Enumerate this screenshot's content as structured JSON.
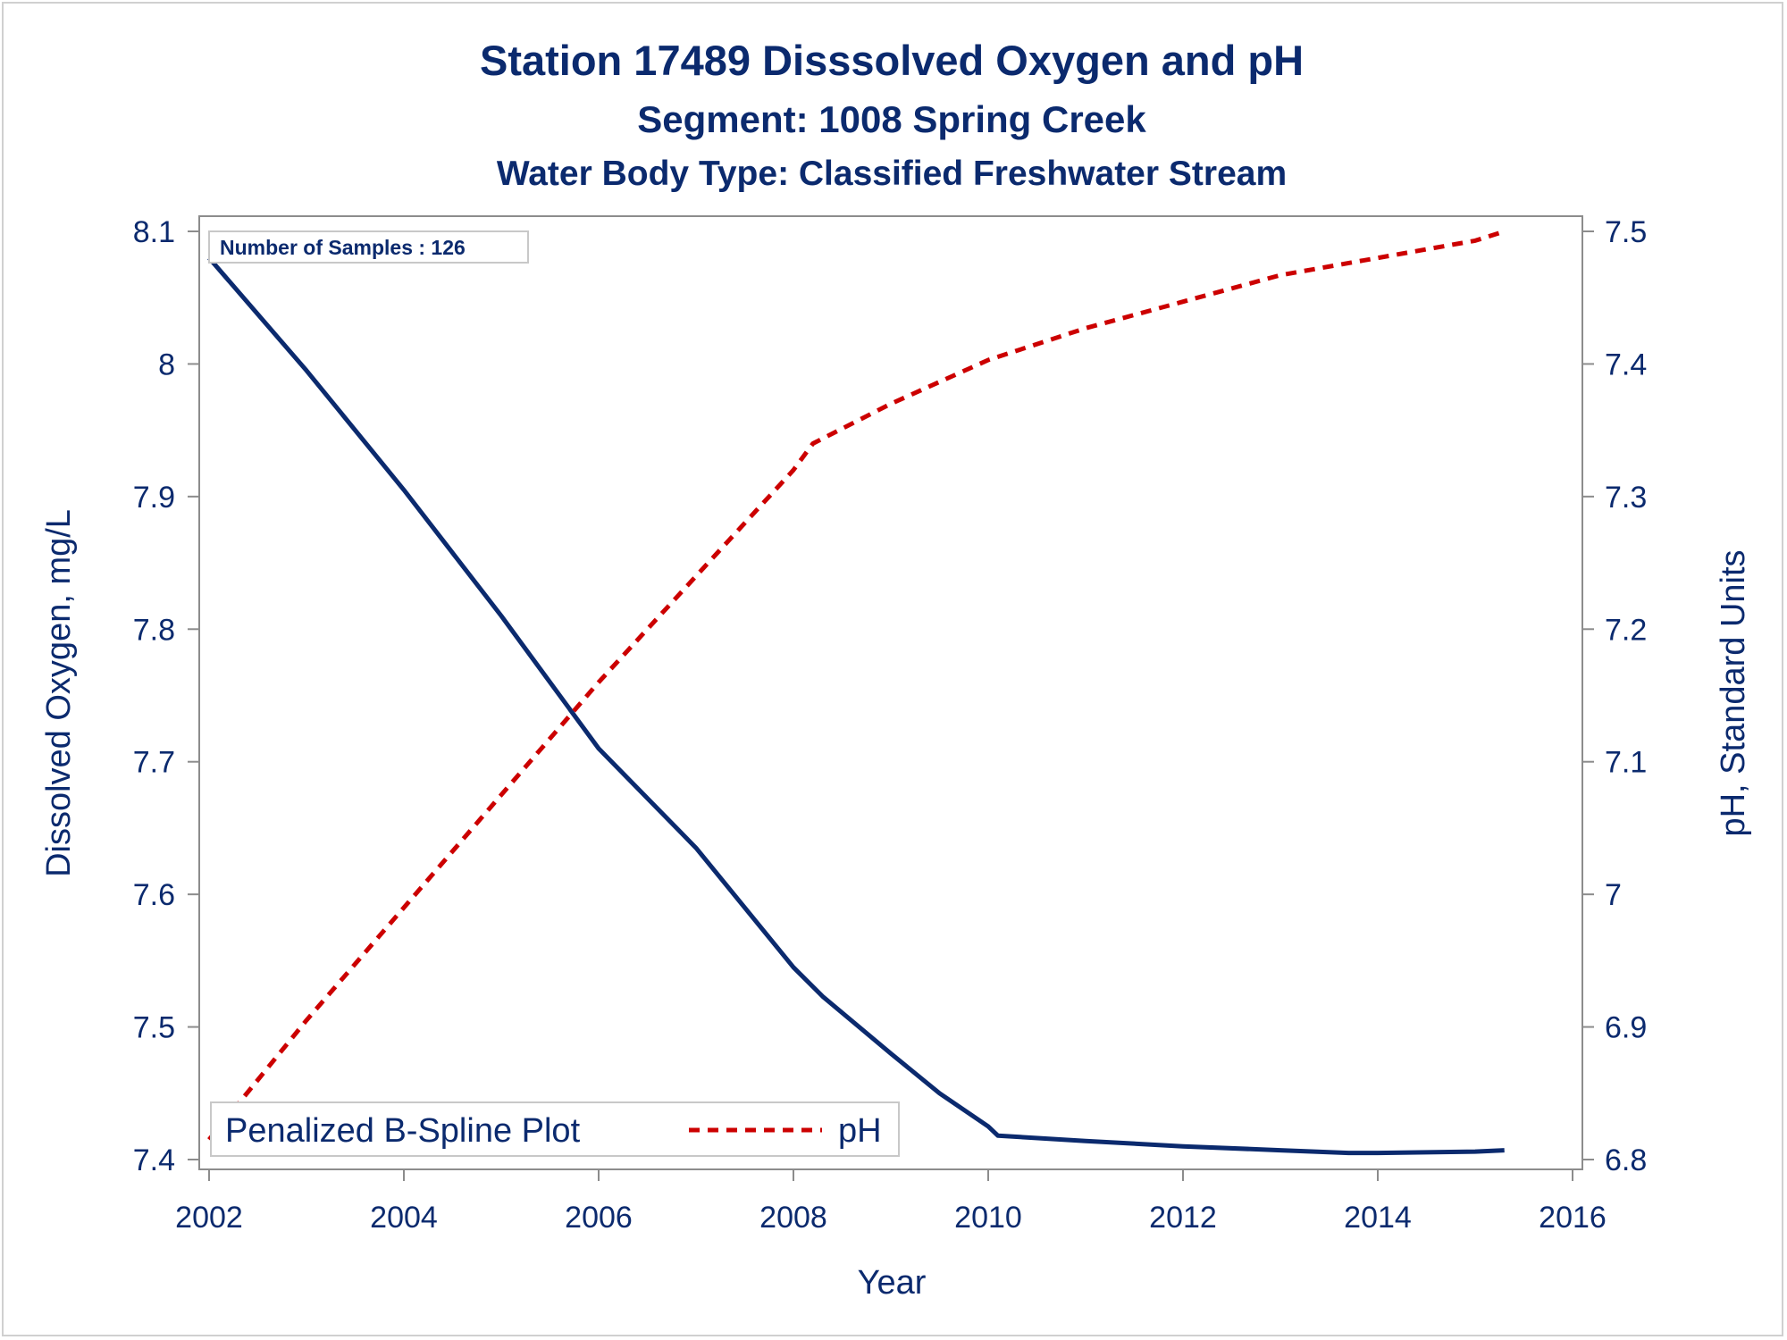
{
  "titles": {
    "main": "Station 17489    Disssolved Oxygen and pH",
    "segment": "Segment: 1008  Spring Creek",
    "water_body": "Water Body Type: Classified Freshwater Stream"
  },
  "inset_label": "Number of Samples : 126",
  "colors": {
    "do_line": "#0b2a6e",
    "ph_line": "#cc0000",
    "text": "#0b2a6e",
    "axis": "#8c8c8c"
  },
  "chart_data": {
    "type": "line",
    "xlabel": "Year",
    "ylabel_left": "Dissolved Oxygen, mg/L",
    "ylabel_right": "pH, Standard Units",
    "xlim": [
      2002,
      2016
    ],
    "ylim_left": [
      7.4,
      8.1
    ],
    "ylim_right": [
      6.8,
      7.5
    ],
    "x_ticks": [
      2002,
      2004,
      2006,
      2008,
      2010,
      2012,
      2014,
      2016
    ],
    "y_ticks_left": [
      "7.4",
      "7.5",
      "7.6",
      "7.7",
      "7.8",
      "7.9",
      "8",
      "8.1"
    ],
    "y_ticks_right": [
      "6.8",
      "6.9",
      "7",
      "7.1",
      "7.2",
      "7.3",
      "7.4",
      "7.5"
    ],
    "legend": {
      "position": "bottom-left",
      "entries": [
        "Penalized B-Spline Plot",
        "pH"
      ]
    },
    "series": [
      {
        "name": "Penalized B-Spline Plot",
        "axis": "left",
        "style": "solid",
        "x": [
          2002.0,
          2003.0,
          2004.0,
          2005.0,
          2006.0,
          2007.0,
          2008.0,
          2008.3,
          2009.0,
          2009.5,
          2010.0,
          2010.1,
          2011.0,
          2012.0,
          2013.0,
          2013.7,
          2014.0,
          2015.0,
          2015.3
        ],
        "y": [
          8.08,
          7.995,
          7.905,
          7.81,
          7.71,
          7.635,
          7.545,
          7.523,
          7.48,
          7.45,
          7.425,
          7.418,
          7.414,
          7.41,
          7.407,
          7.405,
          7.405,
          7.406,
          7.407
        ]
      },
      {
        "name": "pH",
        "axis": "right",
        "style": "dashed",
        "x": [
          2002.0,
          2003.0,
          2004.0,
          2005.0,
          2006.0,
          2007.0,
          2008.0,
          2008.2,
          2009.0,
          2010.0,
          2011.0,
          2012.0,
          2013.0,
          2014.0,
          2015.0,
          2015.3
        ],
        "y": [
          6.815,
          6.905,
          6.99,
          7.075,
          7.16,
          7.24,
          7.32,
          7.34,
          7.37,
          7.403,
          7.427,
          7.447,
          7.467,
          7.48,
          7.493,
          7.5
        ]
      }
    ]
  }
}
